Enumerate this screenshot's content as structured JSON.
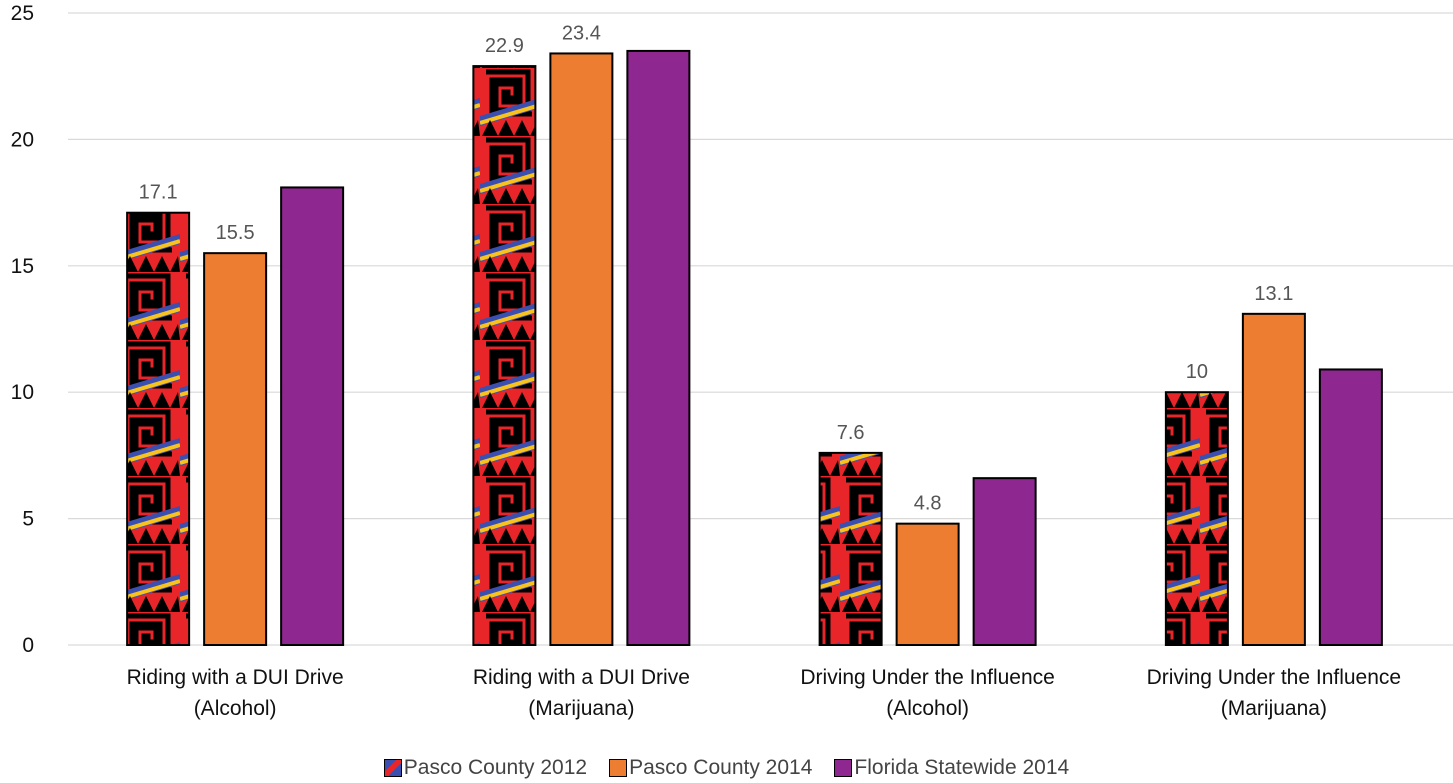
{
  "chart_data": {
    "type": "bar",
    "categories": [
      [
        "Riding with a DUI Drive",
        "(Alcohol)"
      ],
      [
        "Riding with a DUI Drive",
        "(Marijuana)"
      ],
      [
        "Driving Under the Influence",
        "(Alcohol)"
      ],
      [
        "Driving Under the Influence",
        "(Marijuana)"
      ]
    ],
    "series": [
      {
        "name": "Pasco County 2012",
        "values": [
          17.1,
          22.9,
          7.6,
          10
        ],
        "labels": [
          "17.1",
          "22.9",
          "7.6",
          "10"
        ],
        "pattern": "tribal",
        "color": "#e8262a"
      },
      {
        "name": "Pasco County 2014",
        "values": [
          15.5,
          23.4,
          4.8,
          13.1
        ],
        "labels": [
          "15.5",
          "23.4",
          "4.8",
          "13.1"
        ],
        "color": "#ed7d31"
      },
      {
        "name": "Florida Statewide 2014",
        "values": [
          18.1,
          23.5,
          6.6,
          10.9
        ],
        "labels": [
          "",
          "",
          "",
          ""
        ],
        "color": "#8e278f"
      }
    ],
    "ylim": [
      0,
      25
    ],
    "yticks": [
      "0",
      "5",
      "10",
      "15",
      "20",
      "25"
    ],
    "grid": true,
    "legend_position": "bottom",
    "title": "",
    "xlabel": "",
    "ylabel": ""
  }
}
